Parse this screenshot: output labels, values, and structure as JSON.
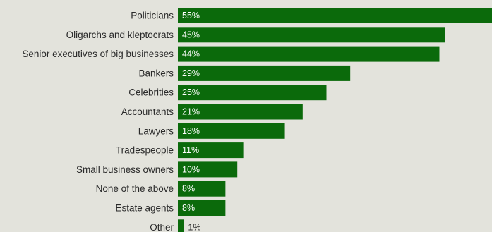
{
  "chart_data": {
    "type": "bar",
    "orientation": "horizontal",
    "categories": [
      "Politicians",
      "Oligarchs and kleptocrats",
      "Senior executives of big businesses",
      "Bankers",
      "Celebrities",
      "Accountants",
      "Lawyers",
      "Tradespeople",
      "Small business owners",
      "None of the above",
      "Estate agents",
      "Other"
    ],
    "values": [
      55,
      45,
      44,
      29,
      25,
      21,
      18,
      11,
      10,
      8,
      8,
      1
    ],
    "value_labels": [
      "55%",
      "45%",
      "44%",
      "29%",
      "25%",
      "21%",
      "18%",
      "11%",
      "10%",
      "8%",
      "8%",
      "1%"
    ],
    "bar_color": "#0b6a0b",
    "background_color": "#e3e3dc",
    "grid": false,
    "legend": "none"
  }
}
